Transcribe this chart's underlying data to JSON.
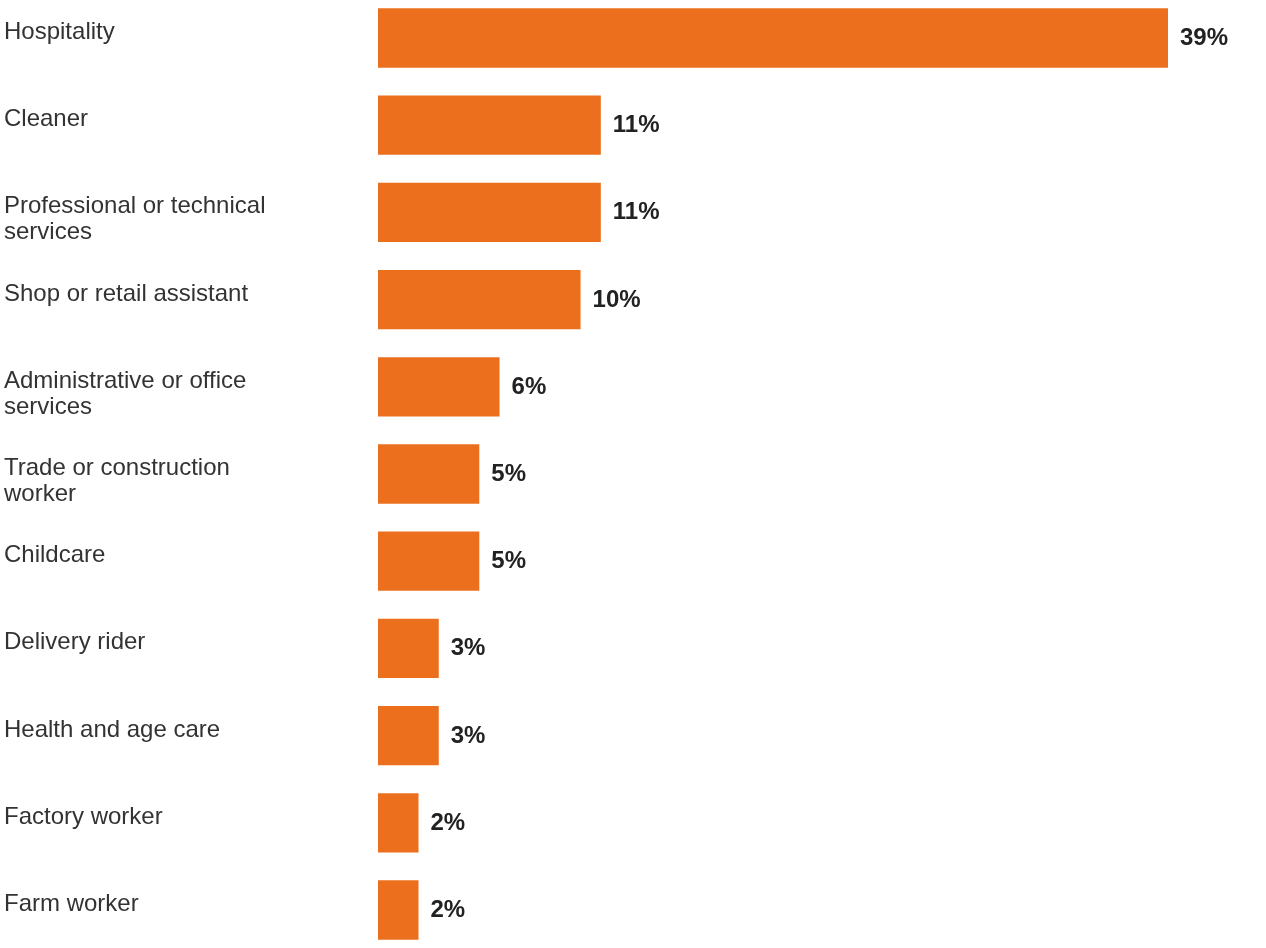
{
  "chart_data": {
    "type": "bar",
    "orientation": "horizontal",
    "categories": [
      "Hospitality",
      "Cleaner",
      "Professional or technical services",
      "Shop or retail assistant",
      "Administrative or office services",
      "Trade or construction worker",
      "Childcare",
      "Delivery rider",
      "Health and age care",
      "Factory worker",
      "Farm worker"
    ],
    "values": [
      39,
      11,
      11,
      10,
      6,
      5,
      5,
      3,
      3,
      2,
      2
    ],
    "value_labels": [
      "39%",
      "11%",
      "11%",
      "10%",
      "6%",
      "5%",
      "5%",
      "3%",
      "3%",
      "2%",
      "2%"
    ],
    "color": "#ec6f1e"
  }
}
